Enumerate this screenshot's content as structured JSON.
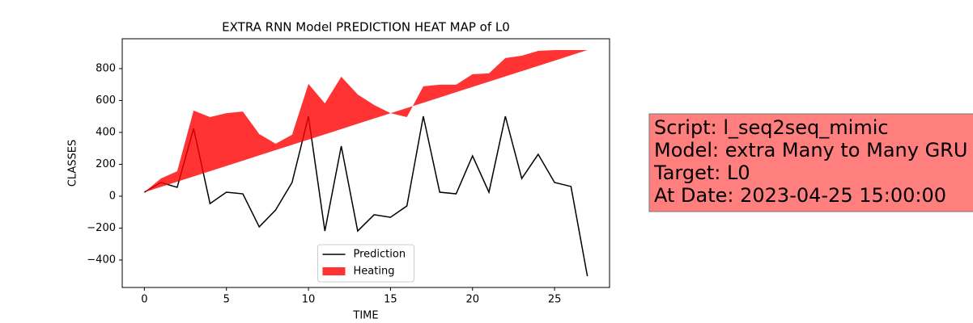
{
  "chart_data": {
    "type": "line",
    "title": "EXTRA RNN Model PREDICTION HEAT MAP of L0",
    "x_label": "TIME",
    "y_label": "CLASSES",
    "x": [
      0,
      1,
      2,
      3,
      4,
      5,
      6,
      7,
      8,
      9,
      10,
      11,
      12,
      13,
      14,
      15,
      16,
      17,
      18,
      19,
      20,
      21,
      22,
      23,
      24,
      25,
      26,
      27
    ],
    "series": [
      {
        "name": "Prediction",
        "color": "#000000",
        "kind": "line",
        "values": [
          25,
          86,
          56,
          425,
          -46,
          25,
          15,
          -192,
          -86,
          86,
          501,
          -218,
          314,
          -218,
          -116,
          -132,
          -61,
          501,
          25,
          15,
          253,
          25,
          501,
          111,
          263,
          86,
          61,
          -501
        ]
      },
      {
        "name": "Heating",
        "color": "#ff0000",
        "alpha": 0.8,
        "kind": "fill",
        "values": [
          25,
          111,
          157,
          537,
          496,
          521,
          531,
          390,
          329,
          385,
          704,
          582,
          749,
          638,
          572,
          521,
          496,
          689,
          699,
          699,
          765,
          770,
          866,
          881,
          911,
          916,
          916,
          916
        ],
        "base": [
          25,
          58,
          91,
          124,
          157,
          190,
          223,
          256,
          289,
          322,
          355,
          388,
          421,
          454,
          487,
          520,
          553,
          586,
          619,
          652,
          685,
          718,
          751,
          784,
          817,
          850,
          883,
          916
        ]
      }
    ],
    "xlim": [
      -1.35,
      28.35
    ],
    "ylim": [
      -572,
      987
    ],
    "xticks": [
      0,
      5,
      10,
      15,
      20,
      25
    ],
    "yticks": [
      {
        "value": -400,
        "label": "−400"
      },
      {
        "value": -200,
        "label": "−200"
      },
      0,
      200,
      400,
      600,
      800
    ],
    "legend": "lower center",
    "annotation": {
      "lines": [
        "Script: l_seq2seq_mimic",
        "Model: extra Many to Many GRU",
        "Target: L0",
        "At Date: 2023-04-25 15:00:00"
      ],
      "color": "#ff7f7f"
    }
  }
}
